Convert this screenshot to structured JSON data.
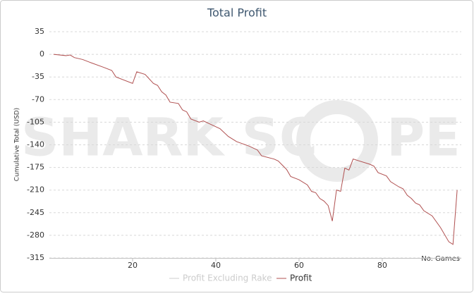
{
  "chart_data": {
    "type": "line",
    "title": "Total Profit",
    "y_label": "Cumulative Total (USD)",
    "x_label": "No. Games",
    "watermark": [
      "SHARK SC",
      "PE"
    ],
    "x": [
      1,
      4,
      5,
      6,
      8,
      10,
      13,
      15,
      16,
      20,
      21,
      23,
      25,
      26,
      27,
      28,
      29,
      31,
      32,
      33,
      34,
      36,
      37,
      40,
      41,
      43,
      45,
      48,
      50,
      51,
      54,
      55,
      57,
      58,
      60,
      62,
      63,
      64,
      65,
      66,
      67,
      68,
      69,
      70,
      71,
      72,
      73,
      77,
      78,
      79,
      81,
      82,
      84,
      85,
      86,
      87,
      88,
      89,
      90,
      92,
      94,
      96,
      97,
      98
    ],
    "series": [
      {
        "name": "Profit Excluding Rake",
        "color": "#cccccc",
        "visible": false
      },
      {
        "name": "Profit",
        "color": "#b05050",
        "visible": true,
        "values": [
          0,
          -2,
          -1,
          -5,
          -8,
          -13,
          -20,
          -25,
          -35,
          -45,
          -27,
          -31,
          -45,
          -48,
          -58,
          -63,
          -74,
          -76,
          -86,
          -89,
          -100,
          -105,
          -103,
          -112,
          -115,
          -127,
          -135,
          -142,
          -148,
          -157,
          -162,
          -165,
          -178,
          -189,
          -194,
          -202,
          -212,
          -214,
          -223,
          -227,
          -234,
          -258,
          -210,
          -212,
          -176,
          -179,
          -162,
          -170,
          -173,
          -183,
          -188,
          -197,
          -205,
          -208,
          -218,
          -223,
          -230,
          -233,
          -242,
          -250,
          -268,
          -290,
          -294,
          -210
        ]
      }
    ],
    "xlim": [
      0,
      99
    ],
    "xticks": [
      20,
      40,
      60,
      80
    ],
    "ylim": [
      -315,
      35
    ],
    "yticks": [
      35,
      0,
      -35,
      -70,
      -105,
      -140,
      -175,
      -210,
      -245,
      -280,
      -315
    ],
    "grid": true,
    "legend": "bottom"
  }
}
